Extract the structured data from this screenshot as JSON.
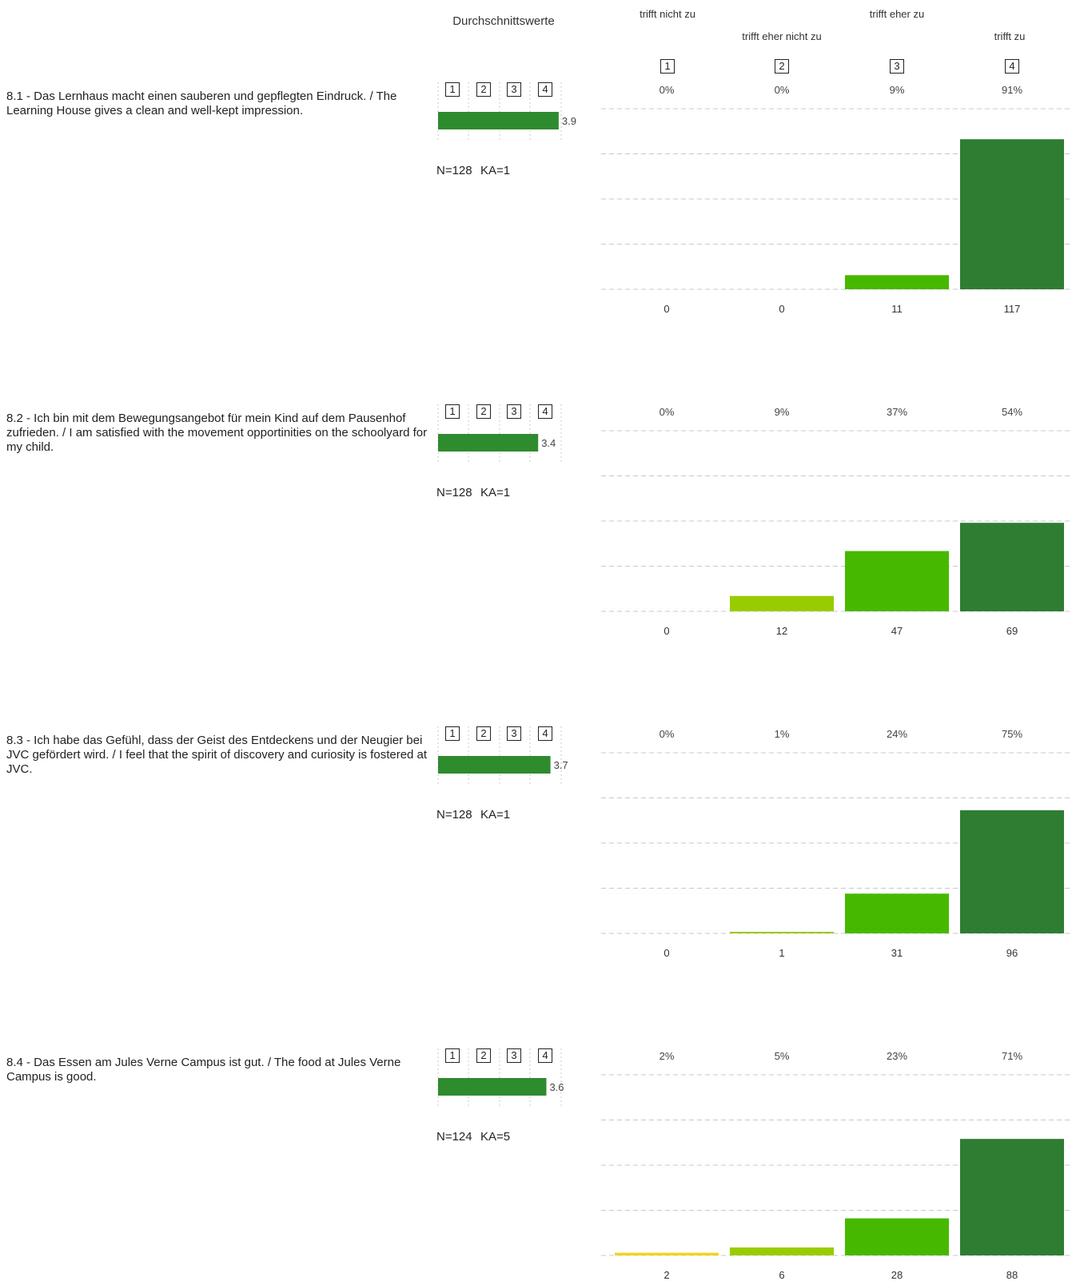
{
  "header": {
    "avg_title": "Durchschnittswerte",
    "categories": [
      {
        "num": "1",
        "label": "trifft nicht zu"
      },
      {
        "num": "2",
        "label": "trifft eher nicht zu"
      },
      {
        "num": "3",
        "label": "trifft eher zu"
      },
      {
        "num": "4",
        "label": "trifft zu"
      }
    ],
    "scale_labels": [
      "1",
      "2",
      "3",
      "4"
    ]
  },
  "colors": {
    "avg_bar": "#2e8b2e",
    "cat1": "#f2d21b",
    "cat2": "#99cc00",
    "cat3": "#47b800",
    "cat4": "#2e7d32"
  },
  "chart_data": [
    {
      "type": "bar",
      "question": "8.1 - Das Lernhaus macht einen sauberen und gepflegten Eindruck. / The Learning House gives a clean and well-kept impression.",
      "categories": [
        "trifft nicht zu",
        "trifft eher nicht zu",
        "trifft eher zu",
        "trifft zu"
      ],
      "counts": [
        0,
        0,
        11,
        117
      ],
      "percents": [
        "0%",
        "0%",
        "9%",
        "91%"
      ],
      "average": 3.9,
      "average_label": "3.9",
      "n_label": "N=128",
      "ka_label": "KA=1"
    },
    {
      "type": "bar",
      "question": "8.2 - Ich bin mit dem Bewegungsangebot für mein Kind auf dem Pausenhof zufrieden. / I am satisfied with the movement opportinities on the schoolyard for my child.",
      "categories": [
        "trifft nicht zu",
        "trifft eher nicht zu",
        "trifft eher zu",
        "trifft zu"
      ],
      "counts": [
        0,
        12,
        47,
        69
      ],
      "percents": [
        "0%",
        "9%",
        "37%",
        "54%"
      ],
      "average": 3.4,
      "average_label": "3.4",
      "n_label": "N=128",
      "ka_label": "KA=1"
    },
    {
      "type": "bar",
      "question": "8.3 - Ich habe das Gefühl, dass der Geist des Entdeckens und der Neugier bei JVC gefördert wird. / I feel that the spirit of discovery and curiosity is fostered at JVC.",
      "categories": [
        "trifft nicht zu",
        "trifft eher nicht zu",
        "trifft eher zu",
        "trifft zu"
      ],
      "counts": [
        0,
        1,
        31,
        96
      ],
      "percents": [
        "0%",
        "1%",
        "24%",
        "75%"
      ],
      "average": 3.7,
      "average_label": "3.7",
      "n_label": "N=128",
      "ka_label": "KA=1"
    },
    {
      "type": "bar",
      "question": "8.4 - Das Essen am Jules Verne Campus ist gut. / The food at Jules Verne Campus is good.",
      "categories": [
        "trifft nicht zu",
        "trifft eher nicht zu",
        "trifft eher zu",
        "trifft zu"
      ],
      "counts": [
        2,
        6,
        28,
        88
      ],
      "percents": [
        "2%",
        "5%",
        "23%",
        "71%"
      ],
      "average": 3.6,
      "average_label": "3.6",
      "n_label": "N=124",
      "ka_label": "KA=5"
    }
  ]
}
